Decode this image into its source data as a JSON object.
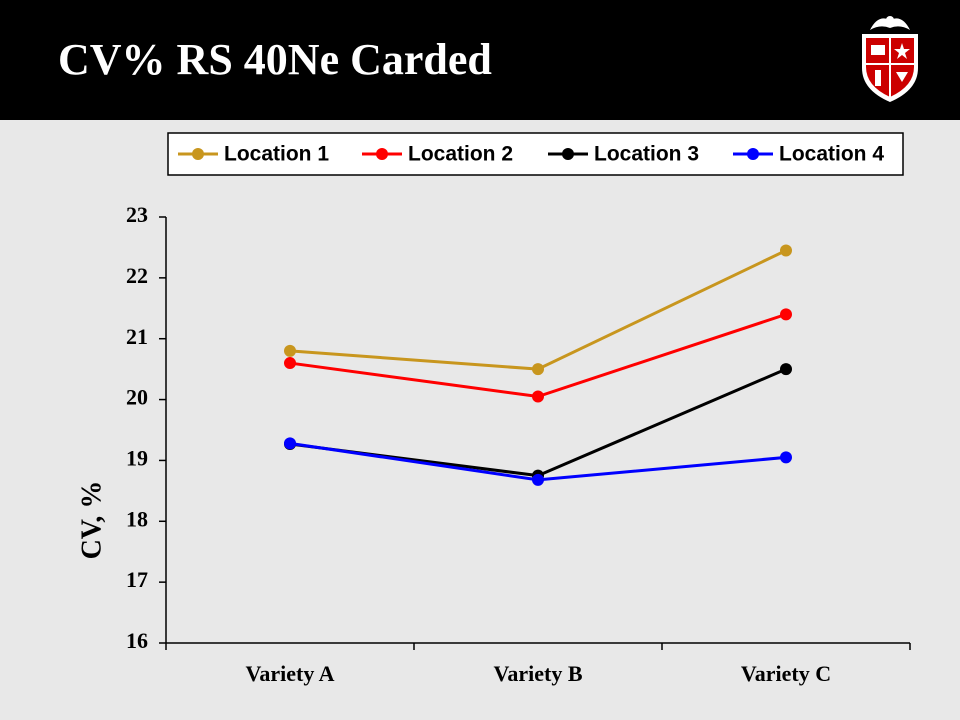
{
  "slide": {
    "title": "CV% RS 40Ne Carded",
    "background": "#e8e8e8",
    "title_bar_color": "#000000",
    "logo": "university-shield-logo"
  },
  "chart_data": {
    "type": "line",
    "title": "",
    "xlabel": "",
    "ylabel": "CV, %",
    "ylim": [
      16,
      23
    ],
    "yticks": [
      16,
      17,
      18,
      19,
      20,
      21,
      22,
      23
    ],
    "categories": [
      "Variety A",
      "Variety B",
      "Variety C"
    ],
    "grid": false,
    "legend_position": "top",
    "series": [
      {
        "name": "Location 1",
        "color": "#c8961e",
        "values": [
          20.8,
          20.5,
          22.45
        ]
      },
      {
        "name": "Location 2",
        "color": "#ff0000",
        "values": [
          20.6,
          20.05,
          21.4
        ]
      },
      {
        "name": "Location 3",
        "color": "#000000",
        "values": [
          19.27,
          18.75,
          20.5
        ]
      },
      {
        "name": "Location 4",
        "color": "#0000ff",
        "values": [
          19.28,
          18.68,
          19.05
        ]
      }
    ]
  }
}
